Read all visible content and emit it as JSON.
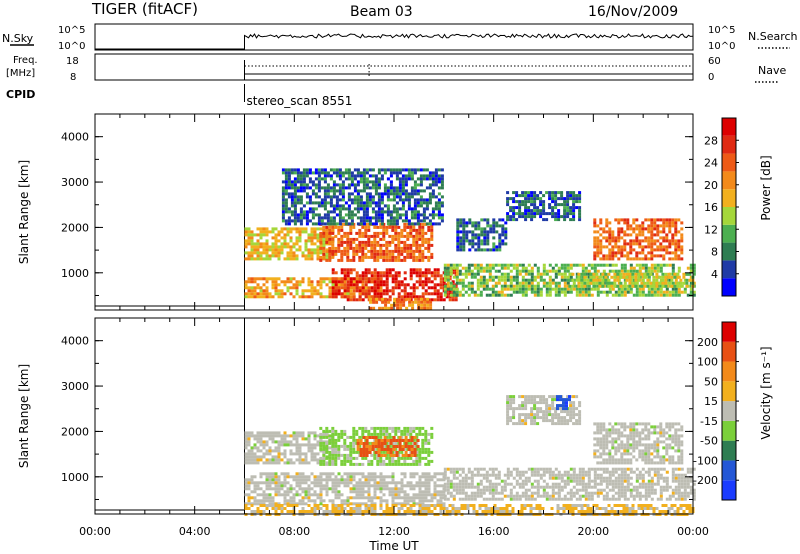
{
  "header": {
    "station": "TIGER (fitACF)",
    "beam": "Beam 03",
    "date": "16/Nov/2009"
  },
  "top_panels": {
    "nsky_label": "N.Sky",
    "nsky_ticks": [
      "10^5",
      "10^0"
    ],
    "nsearch_label": "N.Search",
    "nsearch_ticks": [
      "10^5",
      "10^0"
    ],
    "freq_label_line1": "Freq.",
    "freq_label_line2": "[MHz]",
    "freq_ticks": [
      "18",
      "8"
    ],
    "nave_label": "Nave",
    "nave_ticks": [
      "60",
      "0"
    ],
    "cpid_label": "CPID",
    "cpid_value": "stereo_scan 8551"
  },
  "colors": {
    "power_scale": [
      "#0000ff",
      "#1f3aa6",
      "#2e7d52",
      "#4caf50",
      "#a5d73a",
      "#f2b01e",
      "#f38a1a",
      "#ee5a16",
      "#e02a12",
      "#dd0000"
    ],
    "velocity_scale": [
      "#1b3cff",
      "#2457d6",
      "#2e7d52",
      "#7bcf3a",
      "#bdbdb3",
      "#f2b01e",
      "#f38a1a",
      "#e85014",
      "#dd0000"
    ],
    "ground_scatter": "#bdbdb3"
  },
  "chart_data": [
    {
      "type": "heatmap",
      "panel": "power",
      "ylabel": "Slant Range [km]",
      "yticks": [
        "4000",
        "3000",
        "2000",
        "1000"
      ],
      "ylim": [
        180,
        4500
      ],
      "xlim": [
        0,
        24
      ],
      "xticks": [
        "00:00",
        "04:00",
        "08:00",
        "12:00",
        "16:00",
        "20:00",
        "00:00"
      ],
      "colorbar": {
        "label": "Power [dB]",
        "ticks": [
          "28",
          "24",
          "20",
          "16",
          "12",
          "8",
          "4"
        ],
        "range": [
          0,
          30
        ]
      },
      "data_start_hour": 6.0,
      "regions": [
        {
          "x": [
            6.0,
            9.5
          ],
          "y": [
            1300,
            2000
          ],
          "value": 16
        },
        {
          "x": [
            6.0,
            11.5
          ],
          "y": [
            500,
            900
          ],
          "value": 18
        },
        {
          "x": [
            9.5,
            14.5
          ],
          "y": [
            400,
            1100
          ],
          "value": 26
        },
        {
          "x": [
            9.0,
            13.5
          ],
          "y": [
            1300,
            2100
          ],
          "value": 22
        },
        {
          "x": [
            7.5,
            14.0
          ],
          "y": [
            2100,
            3300
          ],
          "value": 6
        },
        {
          "x": [
            14.0,
            24.0
          ],
          "y": [
            500,
            1200
          ],
          "value": 12
        },
        {
          "x": [
            16.5,
            19.5
          ],
          "y": [
            2200,
            2800
          ],
          "value": 6
        },
        {
          "x": [
            20.0,
            23.5
          ],
          "y": [
            1300,
            2200
          ],
          "value": 22
        },
        {
          "x": [
            19.0,
            24.0
          ],
          "y": [
            700,
            1000
          ],
          "value": 14
        },
        {
          "x": [
            14.5,
            16.5
          ],
          "y": [
            1500,
            2200
          ],
          "value": 6
        },
        {
          "x": [
            11.0,
            13.5
          ],
          "y": [
            250,
            450
          ],
          "value": 20
        }
      ]
    },
    {
      "type": "heatmap",
      "panel": "velocity",
      "ylabel": "Slant Range [km]",
      "yticks": [
        "4000",
        "3000",
        "2000",
        "1000"
      ],
      "ylim": [
        180,
        4500
      ],
      "xlim": [
        0,
        24
      ],
      "xticks": [
        "00:00",
        "04:00",
        "08:00",
        "12:00",
        "16:00",
        "20:00",
        "00:00"
      ],
      "xlabel": "Time UT",
      "colorbar": {
        "label": "Velocity [m s⁻¹]",
        "ticks": [
          "200",
          "100",
          "50",
          "15",
          "-15",
          "-50",
          "-100",
          "-200"
        ],
        "range": [
          -250,
          250
        ]
      },
      "data_start_hour": 6.0,
      "regions": [
        {
          "x": [
            6.0,
            9.5
          ],
          "y": [
            1300,
            2000
          ],
          "value": 0
        },
        {
          "x": [
            6.0,
            14.0
          ],
          "y": [
            400,
            1100
          ],
          "value": 0
        },
        {
          "x": [
            9.0,
            13.5
          ],
          "y": [
            1300,
            2100
          ],
          "value": -40
        },
        {
          "x": [
            10.5,
            13.0
          ],
          "y": [
            1500,
            1900
          ],
          "value": 150
        },
        {
          "x": [
            14.0,
            24.0
          ],
          "y": [
            500,
            1200
          ],
          "value": 0
        },
        {
          "x": [
            20.0,
            23.5
          ],
          "y": [
            1300,
            2200
          ],
          "value": 0
        },
        {
          "x": [
            16.5,
            19.5
          ],
          "y": [
            2200,
            2800
          ],
          "value": 0
        },
        {
          "x": [
            6.0,
            24.0
          ],
          "y": [
            200,
            400
          ],
          "value": 40
        },
        {
          "x": [
            18.5,
            19.0
          ],
          "y": [
            2500,
            2800
          ],
          "value": -180
        }
      ]
    }
  ]
}
